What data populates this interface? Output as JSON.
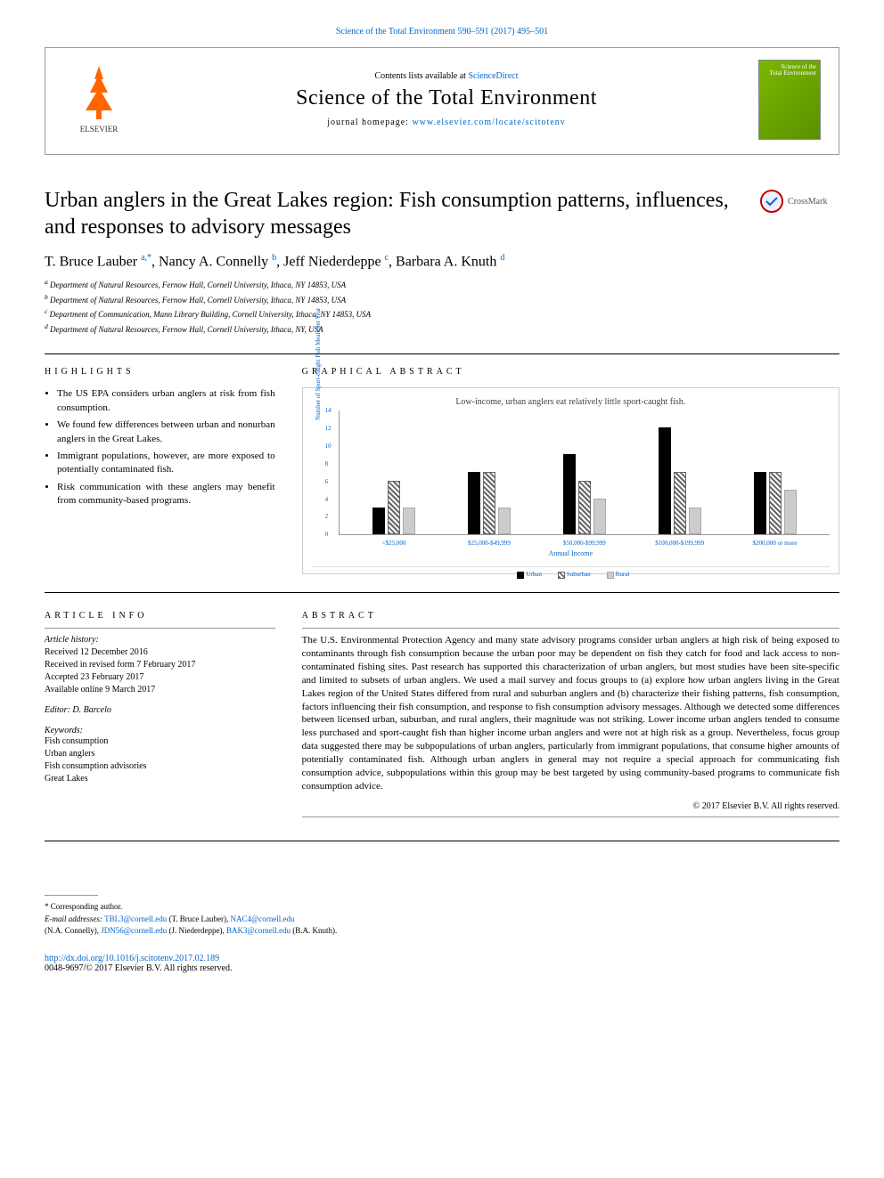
{
  "header": {
    "top_link": "Science of the Total Environment 590–591 (2017) 495–501",
    "contents_prefix": "Contents lists available at ",
    "contents_link": "ScienceDirect",
    "journal_name": "Science of the Total Environment",
    "homepage_prefix": "journal homepage: ",
    "homepage_link": "www.elsevier.com/locate/scitotenv",
    "publisher_logo_label": "ELSEVIER",
    "cover_title_1": "Science of the",
    "cover_title_2": "Total Environment"
  },
  "crossmark": {
    "label": "CrossMark"
  },
  "article": {
    "title": "Urban anglers in the Great Lakes region: Fish consumption patterns, influences, and responses to advisory messages",
    "authors": [
      {
        "name": "T. Bruce Lauber ",
        "sup": "a,*"
      },
      {
        "name": ", Nancy A. Connelly ",
        "sup": "b"
      },
      {
        "name": ", Jeff Niederdeppe ",
        "sup": "c"
      },
      {
        "name": ", Barbara A. Knuth ",
        "sup": "d"
      }
    ],
    "affiliations": [
      {
        "sup": "a",
        "text": " Department of Natural Resources, Fernow Hall, Cornell University, Ithaca, NY 14853, USA"
      },
      {
        "sup": "b",
        "text": " Department of Natural Resources, Fernow Hall, Cornell University, Ithaca, NY 14853, USA"
      },
      {
        "sup": "c",
        "text": " Department of Communication, Mann Library Building, Cornell University, Ithaca, NY 14853, USA"
      },
      {
        "sup": "d",
        "text": " Department of Natural Resources, Fernow Hall, Cornell University, Ithaca, NY, USA"
      }
    ]
  },
  "highlights": {
    "heading": "HIGHLIGHTS",
    "items": [
      "The US EPA considers urban anglers at risk from fish consumption.",
      "We found few differences between urban and nonurban anglers in the Great Lakes.",
      "Immigrant populations, however, are more exposed to potentially contaminated fish.",
      "Risk communication with these anglers may benefit from community-based programs."
    ]
  },
  "graphical": {
    "heading": "GRAPHICAL ABSTRACT",
    "chart": {
      "title": "Low-income, urban anglers eat relatively little sport-caught fish.",
      "ylabel": "Number of Sport-caught Fish Meals per Year",
      "xlabel": "Annual Income",
      "ylim": [
        0,
        14
      ],
      "ytick_step": 2,
      "categories": [
        "<$25,000",
        "$25,000-$49,999",
        "$50,000-$99,999",
        "$100,000-$199,999",
        "$200,000 or more"
      ],
      "series": [
        {
          "name": "Urban",
          "color": "#000000",
          "pattern": "solid",
          "values": [
            3,
            7,
            9,
            12,
            7
          ]
        },
        {
          "name": "Suburban",
          "color": "#666666",
          "pattern": "hatch",
          "values": [
            6,
            7,
            6,
            7,
            7
          ]
        },
        {
          "name": "Rural",
          "color": "#cccccc",
          "pattern": "dots",
          "values": [
            3,
            3,
            4,
            3,
            5
          ]
        }
      ],
      "legend_items": [
        "Urban",
        "Suburban",
        "Rural"
      ],
      "axis_color": "#999999",
      "text_color": "#0066cc",
      "background": "#ffffff",
      "font_size": 8
    }
  },
  "info": {
    "heading": "ARTICLE INFO",
    "history_label": "Article history:",
    "history": [
      "Received 12 December 2016",
      "Received in revised form 7 February 2017",
      "Accepted 23 February 2017",
      "Available online 9 March 2017"
    ],
    "editor": "Editor: D. Barcelo",
    "keywords_label": "Keywords:",
    "keywords": [
      "Fish consumption",
      "Urban anglers",
      "Fish consumption advisories",
      "Great Lakes"
    ]
  },
  "abstract": {
    "heading": "ABSTRACT",
    "text": "The U.S. Environmental Protection Agency and many state advisory programs consider urban anglers at high risk of being exposed to contaminants through fish consumption because the urban poor may be dependent on fish they catch for food and lack access to non-contaminated fishing sites. Past research has supported this characterization of urban anglers, but most studies have been site-specific and limited to subsets of urban anglers. We used a mail survey and focus groups to (a) explore how urban anglers living in the Great Lakes region of the United States differed from rural and suburban anglers and (b) characterize their fishing patterns, fish consumption, factors influencing their fish consumption, and response to fish consumption advisory messages. Although we detected some differences between licensed urban, suburban, and rural anglers, their magnitude was not striking. Lower income urban anglers tended to consume less purchased and sport-caught fish than higher income urban anglers and were not at high risk as a group. Nevertheless, focus group data suggested there may be subpopulations of urban anglers, particularly from immigrant populations, that consume higher amounts of potentially contaminated fish. Although urban anglers in general may not require a special approach for communicating fish consumption advice, subpopulations within this group may be best targeted by using community-based programs to communicate fish consumption advice.",
    "copyright": "© 2017 Elsevier B.V. All rights reserved."
  },
  "footer": {
    "corr": "* Corresponding author.",
    "email_label": "E-mail addresses: ",
    "emails": [
      {
        "addr": "TBL3@cornell.edu",
        "name": " (T. Bruce Lauber), "
      },
      {
        "addr": "NAC4@cornell.edu",
        "name": ""
      }
    ],
    "emails_line2_prefix": "(N.A. Connelly), ",
    "emails_line2": [
      {
        "addr": "JDN56@cornell.edu",
        "name": " (J. Niederdeppe), "
      },
      {
        "addr": "BAK3@cornell.edu",
        "name": " (B.A. Knuth)."
      }
    ],
    "doi": "http://dx.doi.org/10.1016/j.scitotenv.2017.02.189",
    "issn_line": "0048-9697/© 2017 Elsevier B.V. All rights reserved."
  }
}
